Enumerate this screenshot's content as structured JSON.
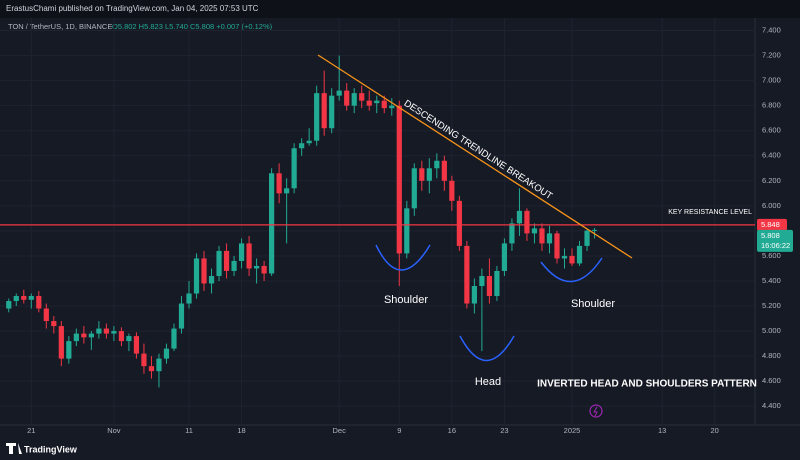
{
  "header": {
    "publisher": "ErastusChami published on TradingView.com, Jan 04, 2025 07:53 UTC",
    "symbol": "TON / TetherUS, 1D, BINANCE",
    "ohlc_info": "O5.802 H5.823 L5.740 C5.808 +0.007 (+0.12%)"
  },
  "footer": {
    "brand": "TradingView"
  },
  "chart_data": {
    "type": "candlestick",
    "categories": [
      null,
      null,
      null,
      "21",
      null,
      null,
      null,
      null,
      null,
      null,
      null,
      null,
      null,
      null,
      "Nov",
      null,
      null,
      null,
      null,
      null,
      null,
      null,
      null,
      null,
      "11",
      null,
      null,
      null,
      null,
      null,
      null,
      "18",
      null,
      null,
      null,
      null,
      null,
      null,
      null,
      null,
      null,
      null,
      null,
      null,
      "Dec",
      null,
      null,
      null,
      null,
      null,
      null,
      null,
      "9",
      null,
      null,
      null,
      null,
      null,
      null,
      "16",
      null,
      null,
      null,
      null,
      null,
      null,
      "23",
      null,
      null,
      null,
      null,
      null,
      null,
      null,
      null,
      "2025",
      null,
      null,
      null,
      null,
      null,
      null,
      null,
      null,
      null,
      null,
      null,
      "13",
      null,
      null,
      null,
      null,
      null,
      null,
      "20",
      null,
      null
    ],
    "open": [
      5.18,
      5.24,
      5.28,
      5.25,
      5.28,
      5.18,
      5.08,
      5.04,
      4.78,
      4.92,
      4.98,
      4.95,
      4.98,
      5.02,
      4.98,
      5.0,
      4.92,
      4.96,
      4.82,
      4.72,
      4.68,
      4.78,
      4.86,
      5.02,
      5.22,
      5.3,
      5.58,
      5.38,
      5.44,
      5.64,
      5.48,
      5.56,
      5.7,
      5.5,
      5.52,
      5.46,
      6.26,
      6.1,
      6.14,
      6.46,
      6.5,
      6.52,
      6.9,
      6.62,
      6.88,
      6.92,
      6.8,
      6.9,
      6.84,
      6.82,
      6.84,
      6.78,
      6.8,
      5.62,
      5.98,
      6.3,
      6.2,
      6.3,
      6.36,
      6.2,
      6.04,
      5.68,
      5.22,
      5.36,
      5.44,
      5.28,
      5.48,
      5.7,
      5.86,
      5.96,
      5.78,
      5.82,
      5.7,
      5.78,
      5.58,
      5.6,
      5.54,
      5.68,
      5.802,
      null,
      null,
      null,
      null,
      null,
      null,
      null,
      null,
      null,
      null,
      null,
      null,
      null,
      null,
      null,
      null,
      null,
      null
    ],
    "high": [
      5.26,
      5.3,
      5.33,
      5.3,
      5.32,
      5.22,
      5.12,
      5.08,
      4.96,
      5.02,
      5.04,
      5.0,
      5.08,
      5.06,
      5.04,
      5.03,
      4.98,
      4.99,
      4.9,
      4.8,
      4.82,
      4.9,
      5.06,
      5.28,
      5.4,
      5.62,
      5.64,
      5.5,
      5.68,
      5.7,
      5.6,
      5.74,
      5.76,
      5.58,
      5.56,
      6.3,
      6.34,
      6.22,
      6.5,
      6.54,
      6.62,
      6.96,
      7.08,
      6.94,
      7.2,
      6.98,
      6.94,
      6.96,
      6.92,
      6.88,
      6.88,
      6.86,
      6.84,
      6.04,
      6.34,
      6.36,
      6.38,
      6.42,
      6.4,
      6.24,
      6.08,
      5.72,
      5.42,
      5.5,
      5.58,
      5.52,
      5.74,
      5.9,
      6.14,
      5.98,
      5.86,
      5.86,
      5.84,
      5.8,
      5.66,
      5.66,
      5.72,
      5.82,
      5.823,
      null,
      null,
      null,
      null,
      null,
      null,
      null,
      null,
      null,
      null,
      null,
      null,
      null,
      null,
      null,
      null,
      null,
      null
    ],
    "low": [
      5.15,
      5.2,
      5.22,
      5.18,
      5.15,
      5.02,
      4.98,
      4.72,
      4.74,
      4.88,
      4.9,
      4.85,
      4.94,
      4.94,
      4.92,
      4.88,
      4.84,
      4.78,
      4.66,
      4.62,
      4.55,
      4.74,
      4.84,
      4.98,
      5.18,
      5.26,
      5.32,
      5.3,
      5.4,
      5.42,
      5.44,
      5.5,
      5.44,
      5.38,
      5.4,
      5.44,
      6.02,
      5.7,
      6.1,
      6.4,
      6.48,
      6.48,
      6.56,
      6.58,
      6.84,
      6.76,
      6.74,
      6.78,
      6.76,
      6.74,
      6.74,
      6.72,
      5.36,
      5.58,
      5.92,
      6.12,
      6.1,
      6.22,
      6.12,
      5.96,
      5.64,
      5.18,
      5.14,
      4.84,
      5.22,
      5.24,
      5.44,
      5.64,
      5.76,
      5.72,
      5.7,
      5.64,
      5.62,
      5.54,
      5.5,
      5.52,
      5.52,
      5.64,
      5.74,
      null,
      null,
      null,
      null,
      null,
      null,
      null,
      null,
      null,
      null,
      null,
      null,
      null,
      null,
      null,
      null,
      null,
      null
    ],
    "close": [
      5.24,
      5.28,
      5.25,
      5.28,
      5.18,
      5.08,
      5.04,
      4.78,
      4.92,
      4.98,
      4.95,
      4.98,
      5.02,
      4.98,
      5.0,
      4.92,
      4.96,
      4.82,
      4.72,
      4.68,
      4.78,
      4.86,
      5.02,
      5.22,
      5.3,
      5.58,
      5.38,
      5.44,
      5.64,
      5.48,
      5.56,
      5.7,
      5.5,
      5.52,
      5.46,
      6.26,
      6.1,
      6.14,
      6.46,
      6.5,
      6.52,
      6.9,
      6.62,
      6.88,
      6.92,
      6.8,
      6.9,
      6.84,
      6.8,
      6.84,
      6.78,
      6.8,
      5.62,
      5.98,
      6.3,
      6.2,
      6.3,
      6.36,
      6.2,
      6.04,
      5.68,
      5.22,
      5.36,
      5.44,
      5.28,
      5.48,
      5.7,
      5.86,
      5.96,
      5.78,
      5.82,
      5.7,
      5.78,
      5.58,
      5.6,
      5.54,
      5.68,
      5.802,
      5.808,
      null,
      null,
      null,
      null,
      null,
      null,
      null,
      null,
      null,
      null,
      null,
      null,
      null,
      null,
      null,
      null,
      null,
      null
    ],
    "up_color": "#22ab94",
    "down_color": "#f23645",
    "ylim": [
      4.25,
      7.5
    ],
    "yticks": [
      {
        "value": 4.4,
        "label": "4.400"
      },
      {
        "value": 4.6,
        "label": "4.600"
      },
      {
        "value": 4.8,
        "label": "4.800"
      },
      {
        "value": 5.0,
        "label": "5.000"
      },
      {
        "value": 5.2,
        "label": "5.200"
      },
      {
        "value": 5.4,
        "label": "5.400"
      },
      {
        "value": 5.6,
        "label": "5.600"
      },
      {
        "value": 5.8,
        "label": "5.800"
      },
      {
        "value": 6.0,
        "label": "6.000"
      },
      {
        "value": 6.2,
        "label": "6.200"
      },
      {
        "value": 6.4,
        "label": "6.400"
      },
      {
        "value": 6.6,
        "label": "6.600"
      },
      {
        "value": 6.8,
        "label": "6.800"
      },
      {
        "value": 7.0,
        "label": "7.000"
      },
      {
        "value": 7.2,
        "label": "7.200"
      },
      {
        "value": 7.4,
        "label": "7.400"
      }
    ],
    "grid": true,
    "resistance_level": 5.848,
    "countdown": "16:06:22",
    "annotations": {
      "trendline": "DESCENDING TRENDLINE BREAKOUT",
      "resistance": "KEY RESISTANCE LEVEL",
      "left_shoulder": "Shoulder",
      "head": "Head",
      "right_shoulder": "Shoulder",
      "pattern": "INVERTED HEAD AND SHOULDERS PATTERN"
    }
  }
}
